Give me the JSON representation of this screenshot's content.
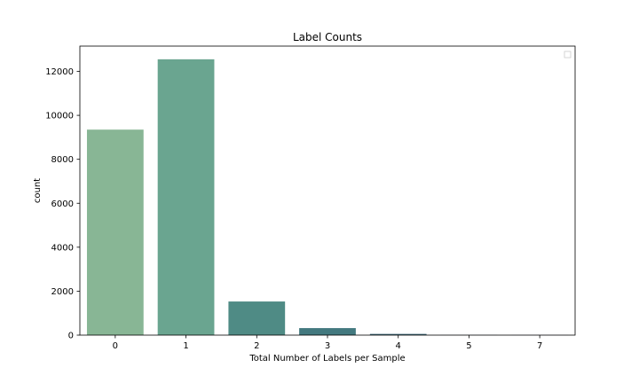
{
  "chart_data": {
    "type": "bar",
    "title": "Label Counts",
    "xlabel": "Total Number of Labels per Sample",
    "ylabel": "count",
    "categories": [
      "0",
      "1",
      "2",
      "3",
      "4",
      "5",
      "7"
    ],
    "values": [
      9350,
      12550,
      1530,
      320,
      55,
      5,
      2
    ],
    "ylim": [
      0,
      13150
    ],
    "yticks": [
      0,
      2000,
      4000,
      6000,
      8000,
      10000,
      12000
    ],
    "colors": [
      "#88b695",
      "#6aa590",
      "#4f8b85",
      "#43797f",
      "#3d6877",
      "#385870",
      "#2f4460"
    ],
    "grid": false,
    "legend": "top-right",
    "legend_entries": []
  }
}
